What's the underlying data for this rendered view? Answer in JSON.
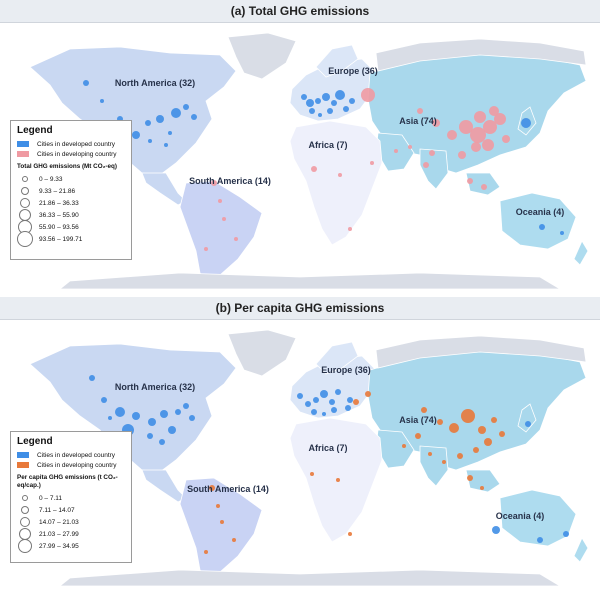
{
  "panels": [
    {
      "title": "(a) Total GHG emissions",
      "developing_color": "#ef9aa2",
      "regions": [
        {
          "name": "North America (32)",
          "x": 155,
          "y": 63
        },
        {
          "name": "Europe (36)",
          "x": 353,
          "y": 51
        },
        {
          "name": "Asia (74)",
          "x": 418,
          "y": 101
        },
        {
          "name": "Africa (7)",
          "x": 328,
          "y": 125
        },
        {
          "name": "South America (14)",
          "x": 230,
          "y": 161
        },
        {
          "name": "Oceania (4)",
          "x": 540,
          "y": 192
        }
      ],
      "legend": {
        "title": "Legend",
        "developed": "Cities in developed country",
        "developing": "Cities in developing country",
        "size_title": "Total GHG emissions (Mt CO₂-eq)",
        "ranges": [
          "0 – 9.33",
          "9.33 – 21.86",
          "21.86 – 36.33",
          "36.33 – 55.90",
          "55.90 – 93.56",
          "93.56 – 199.71"
        ]
      }
    },
    {
      "title": "(b) Per capita GHG emissions",
      "developing_color": "#e8793a",
      "regions": [
        {
          "name": "North America (32)",
          "x": 155,
          "y": 70
        },
        {
          "name": "Europe (36)",
          "x": 346,
          "y": 53
        },
        {
          "name": "Asia (74)",
          "x": 418,
          "y": 103
        },
        {
          "name": "Africa (7)",
          "x": 328,
          "y": 131
        },
        {
          "name": "South America (14)",
          "x": 228,
          "y": 172
        },
        {
          "name": "Oceania (4)",
          "x": 520,
          "y": 199
        }
      ],
      "legend": {
        "title": "Legend",
        "developed": "Cities in developed country",
        "developing": "Cities in developing country",
        "size_title": "Per capita GHG emissions (t CO₂-eq/cap.)",
        "ranges": [
          "0 – 7.11",
          "7.11 – 14.07",
          "14.07 – 21.03",
          "21.03 – 27.99",
          "27.99 – 34.95"
        ]
      }
    }
  ],
  "colors": {
    "sea": "#ffffff",
    "land": "#d9dde6",
    "north_america": "#c9d8f2",
    "south_america": "#c9d3f4",
    "europe": "#dbe6f7",
    "asia": "#a9d8ec",
    "africa": "#eef0fb",
    "oceania": "#aedcef",
    "developed": "#3f8ee6"
  }
}
